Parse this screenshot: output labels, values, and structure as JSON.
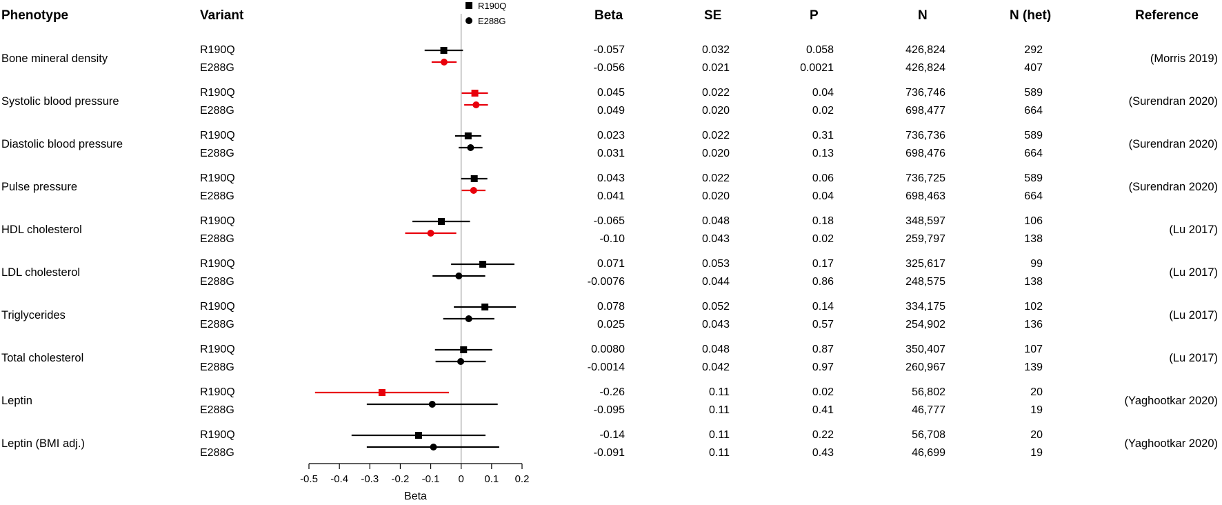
{
  "headers": {
    "phenotype": "Phenotype",
    "variant": "Variant",
    "beta": "Beta",
    "se": "SE",
    "p": "P",
    "n": "N",
    "n_het": "N (het)",
    "reference": "Reference"
  },
  "colors": {
    "significant": "#e8000b",
    "default": "#000000",
    "axis": "#000000",
    "zero_line": "#888888"
  },
  "rows": [
    {
      "phenotype": "Bone mineral density",
      "reference": "(Morris 2019)",
      "variants": [
        {
          "variant": "R190Q",
          "beta": "-0.057",
          "se": "0.032",
          "p": "0.058",
          "n": "426,824",
          "n_het": "292"
        },
        {
          "variant": "E288G",
          "beta": "-0.056",
          "se": "0.021",
          "p": "0.0021",
          "n": "426,824",
          "n_het": "407"
        }
      ]
    },
    {
      "phenotype": "Systolic blood pressure",
      "reference": "(Surendran 2020)",
      "variants": [
        {
          "variant": "R190Q",
          "beta": "0.045",
          "se": "0.022",
          "p": "0.04",
          "n": "736,746",
          "n_het": "589"
        },
        {
          "variant": "E288G",
          "beta": "0.049",
          "se": "0.020",
          "p": "0.02",
          "n": "698,477",
          "n_het": "664"
        }
      ]
    },
    {
      "phenotype": "Diastolic blood pressure",
      "reference": "(Surendran 2020)",
      "variants": [
        {
          "variant": "R190Q",
          "beta": "0.023",
          "se": "0.022",
          "p": "0.31",
          "n": "736,736",
          "n_het": "589"
        },
        {
          "variant": "E288G",
          "beta": "0.031",
          "se": "0.020",
          "p": "0.13",
          "n": "698,476",
          "n_het": "664"
        }
      ]
    },
    {
      "phenotype": "Pulse pressure",
      "reference": "(Surendran 2020)",
      "variants": [
        {
          "variant": "R190Q",
          "beta": "0.043",
          "se": "0.022",
          "p": "0.06",
          "n": "736,725",
          "n_het": "589"
        },
        {
          "variant": "E288G",
          "beta": "0.041",
          "se": "0.020",
          "p": "0.04",
          "n": "698,463",
          "n_het": "664"
        }
      ]
    },
    {
      "phenotype": "HDL cholesterol",
      "reference": "(Lu 2017)",
      "variants": [
        {
          "variant": "R190Q",
          "beta": "-0.065",
          "se": "0.048",
          "p": "0.18",
          "n": "348,597",
          "n_het": "106"
        },
        {
          "variant": "E288G",
          "beta": "-0.10",
          "se": "0.043",
          "p": "0.02",
          "n": "259,797",
          "n_het": "138"
        }
      ]
    },
    {
      "phenotype": "LDL cholesterol",
      "reference": "(Lu 2017)",
      "variants": [
        {
          "variant": "R190Q",
          "beta": "0.071",
          "se": "0.053",
          "p": "0.17",
          "n": "325,617",
          "n_het": "99"
        },
        {
          "variant": "E288G",
          "beta": "-0.0076",
          "se": "0.044",
          "p": "0.86",
          "n": "248,575",
          "n_het": "138"
        }
      ]
    },
    {
      "phenotype": "Triglycerides",
      "reference": "(Lu 2017)",
      "variants": [
        {
          "variant": "R190Q",
          "beta": "0.078",
          "se": "0.052",
          "p": "0.14",
          "n": "334,175",
          "n_het": "102"
        },
        {
          "variant": "E288G",
          "beta": "0.025",
          "se": "0.043",
          "p": "0.57",
          "n": "254,902",
          "n_het": "136"
        }
      ]
    },
    {
      "phenotype": "Total cholesterol",
      "reference": "(Lu 2017)",
      "variants": [
        {
          "variant": "R190Q",
          "beta": "0.0080",
          "se": "0.048",
          "p": "0.87",
          "n": "350,407",
          "n_het": "107"
        },
        {
          "variant": "E288G",
          "beta": "-0.0014",
          "se": "0.042",
          "p": "0.97",
          "n": "260,967",
          "n_het": "139"
        }
      ]
    },
    {
      "phenotype": "Leptin",
      "reference": "(Yaghootkar 2020)",
      "variants": [
        {
          "variant": "R190Q",
          "beta": "-0.26",
          "se": "0.11",
          "p": "0.02",
          "n": "56,802",
          "n_het": "20"
        },
        {
          "variant": "E288G",
          "beta": "-0.095",
          "se": "0.11",
          "p": "0.41",
          "n": "46,777",
          "n_het": "19"
        }
      ]
    },
    {
      "phenotype": "Leptin (BMI adj.)",
      "reference": "(Yaghootkar 2020)",
      "variants": [
        {
          "variant": "R190Q",
          "beta": "-0.14",
          "se": "0.11",
          "p": "0.22",
          "n": "56,708",
          "n_het": "20"
        },
        {
          "variant": "E288G",
          "beta": "-0.091",
          "se": "0.11",
          "p": "0.43",
          "n": "46,699",
          "n_het": "19"
        }
      ]
    }
  ],
  "chart_data": {
    "type": "scatter",
    "subtype": "forest",
    "xlabel": "Beta",
    "xlim": [
      -0.5,
      0.2
    ],
    "xticks": [
      -0.5,
      -0.4,
      -0.3,
      -0.2,
      -0.1,
      0,
      0.1,
      0.2
    ],
    "xtick_labels": [
      "-0.5",
      "-0.4",
      "-0.3",
      "-0.2",
      "-0.1",
      "0",
      "0.1",
      "0.2"
    ],
    "reference_line": 0,
    "legend": [
      {
        "label": "R190Q",
        "marker": "square"
      },
      {
        "label": "E288G",
        "marker": "circle"
      }
    ],
    "legend_position": "top-center",
    "categories": [
      "Bone mineral density",
      "Systolic blood pressure",
      "Diastolic blood pressure",
      "Pulse pressure",
      "HDL cholesterol",
      "LDL cholesterol",
      "Triglycerides",
      "Total cholesterol",
      "Leptin",
      "Leptin (BMI adj.)"
    ],
    "series": [
      {
        "name": "R190Q",
        "marker": "square",
        "beta": [
          -0.057,
          0.045,
          0.023,
          0.043,
          -0.065,
          0.071,
          0.078,
          0.008,
          -0.26,
          -0.14
        ],
        "lower": [
          -0.12,
          0.002,
          -0.02,
          0.0,
          -0.16,
          -0.033,
          -0.024,
          -0.086,
          -0.48,
          -0.36
        ],
        "upper": [
          0.006,
          0.088,
          0.066,
          0.086,
          0.029,
          0.175,
          0.18,
          0.102,
          -0.04,
          0.08
        ],
        "significant": [
          false,
          true,
          false,
          false,
          false,
          false,
          false,
          false,
          true,
          false
        ]
      },
      {
        "name": "E288G",
        "marker": "circle",
        "beta": [
          -0.056,
          0.049,
          0.031,
          0.041,
          -0.1,
          -0.0076,
          0.025,
          -0.0014,
          -0.095,
          -0.091
        ],
        "lower": [
          -0.097,
          0.01,
          -0.008,
          0.002,
          -0.184,
          -0.094,
          -0.059,
          -0.084,
          -0.31,
          -0.31
        ],
        "upper": [
          -0.015,
          0.088,
          0.07,
          0.08,
          -0.016,
          0.079,
          0.109,
          0.081,
          0.12,
          0.125
        ],
        "significant": [
          true,
          true,
          false,
          true,
          true,
          false,
          false,
          false,
          false,
          false
        ]
      }
    ]
  }
}
